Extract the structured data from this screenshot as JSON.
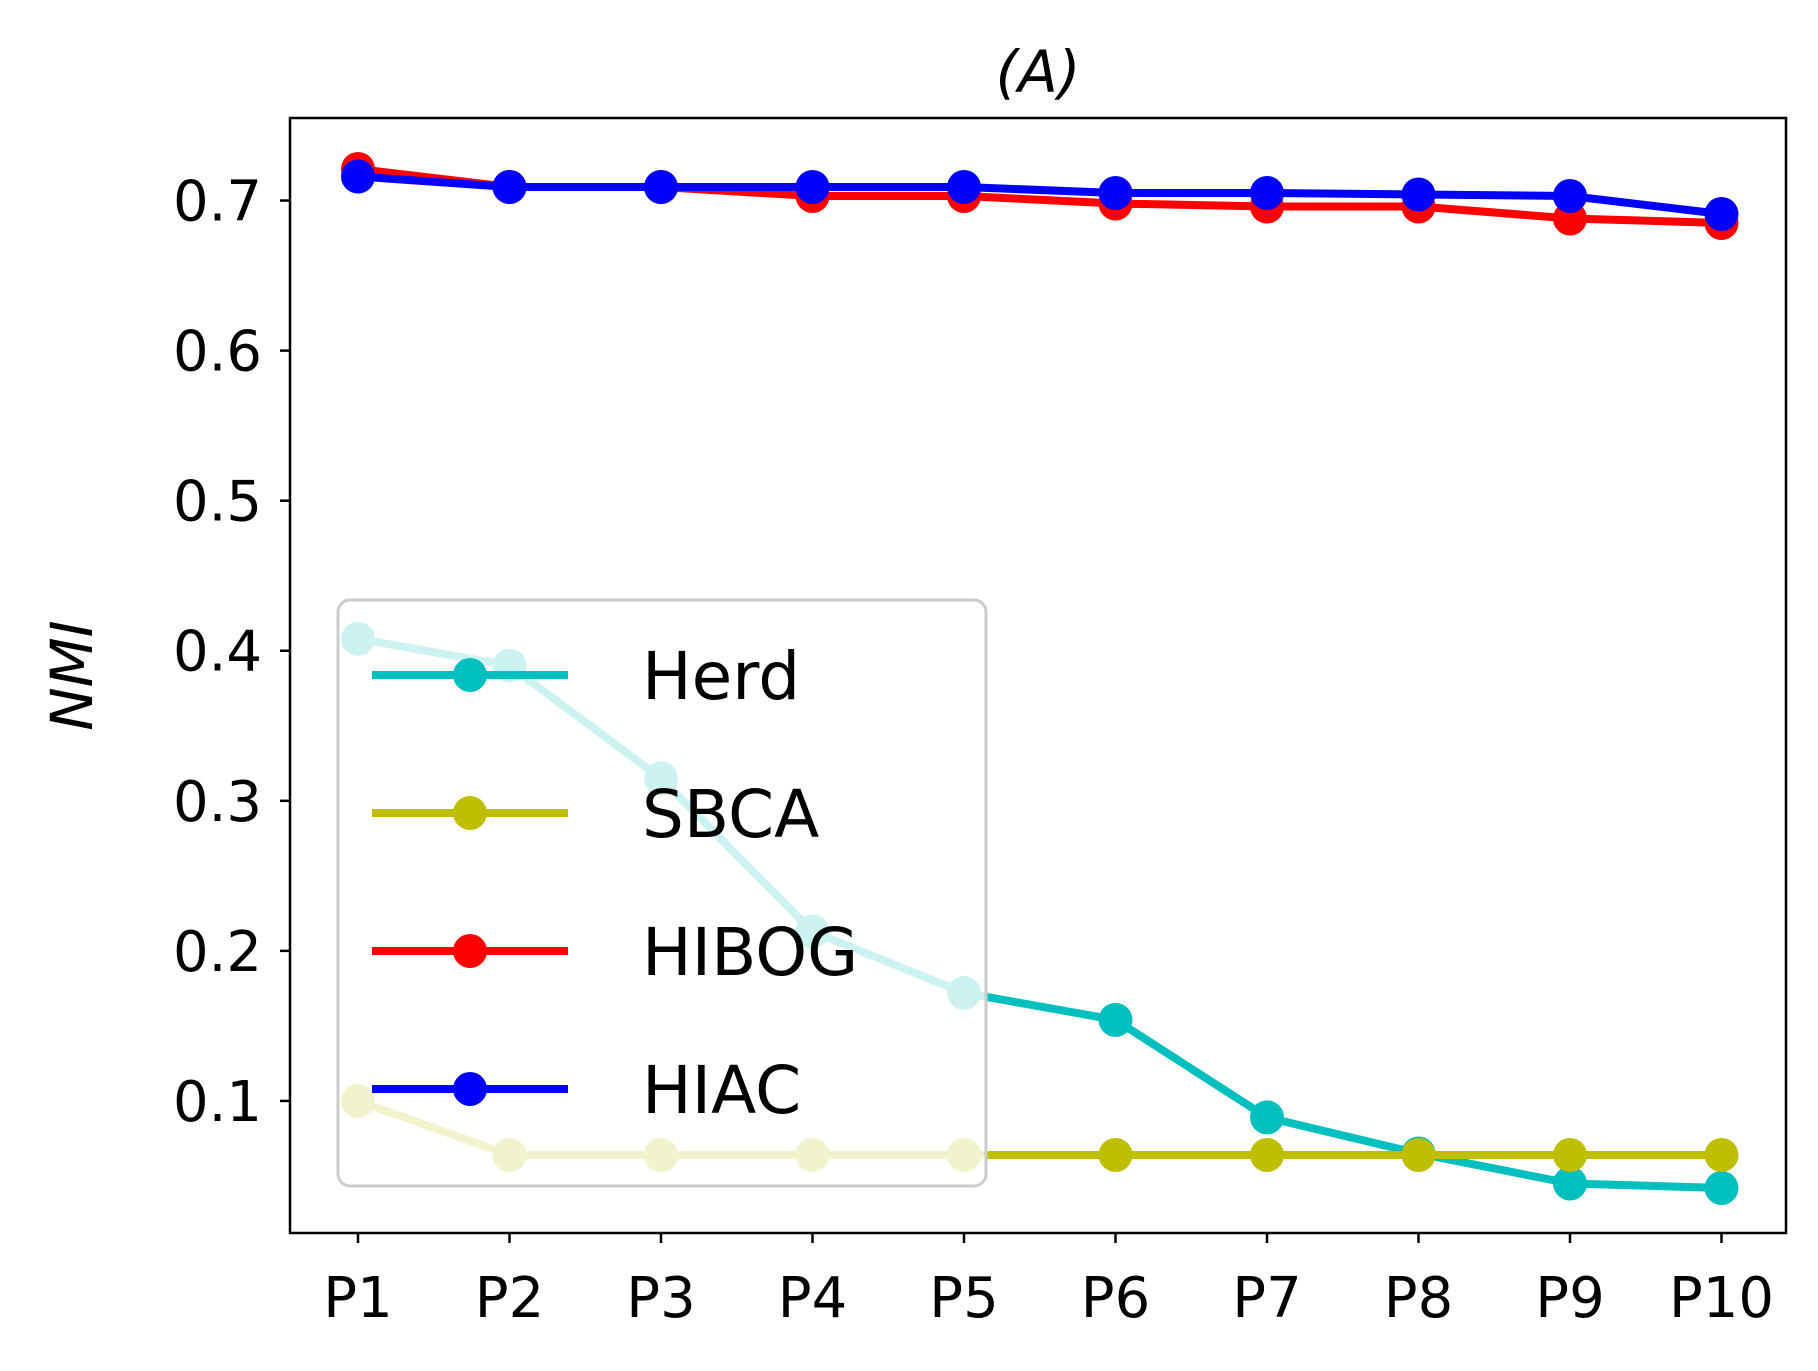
{
  "chart_data": {
    "type": "line",
    "title": "(A)",
    "xlabel": "",
    "ylabel": "NMI",
    "categories": [
      "P1",
      "P2",
      "P3",
      "P4",
      "P5",
      "P6",
      "P7",
      "P8",
      "P9",
      "P10"
    ],
    "yticks": [
      "0.1",
      "0.2",
      "0.3",
      "0.4",
      "0.5",
      "0.6",
      "0.7"
    ],
    "ylim": [
      0.012,
      0.755
    ],
    "grid": false,
    "legend_position": "lower-left",
    "series": [
      {
        "name": "Herd",
        "color": "#00bfbf",
        "values": [
          0.408,
          0.39,
          0.315,
          0.213,
          0.172,
          0.154,
          0.089,
          0.065,
          0.045,
          0.042
        ]
      },
      {
        "name": "SBCA",
        "color": "#bfbf00",
        "values": [
          0.1,
          0.064,
          0.064,
          0.064,
          0.064,
          0.064,
          0.064,
          0.064,
          0.064,
          0.064
        ]
      },
      {
        "name": "HIBOG",
        "color": "#ff0000",
        "values": [
          0.721,
          0.709,
          0.709,
          0.703,
          0.703,
          0.698,
          0.696,
          0.696,
          0.688,
          0.685
        ]
      },
      {
        "name": "HIAC",
        "color": "#0000ff",
        "values": [
          0.716,
          0.709,
          0.709,
          0.709,
          0.709,
          0.705,
          0.705,
          0.704,
          0.703,
          0.691
        ]
      }
    ]
  }
}
